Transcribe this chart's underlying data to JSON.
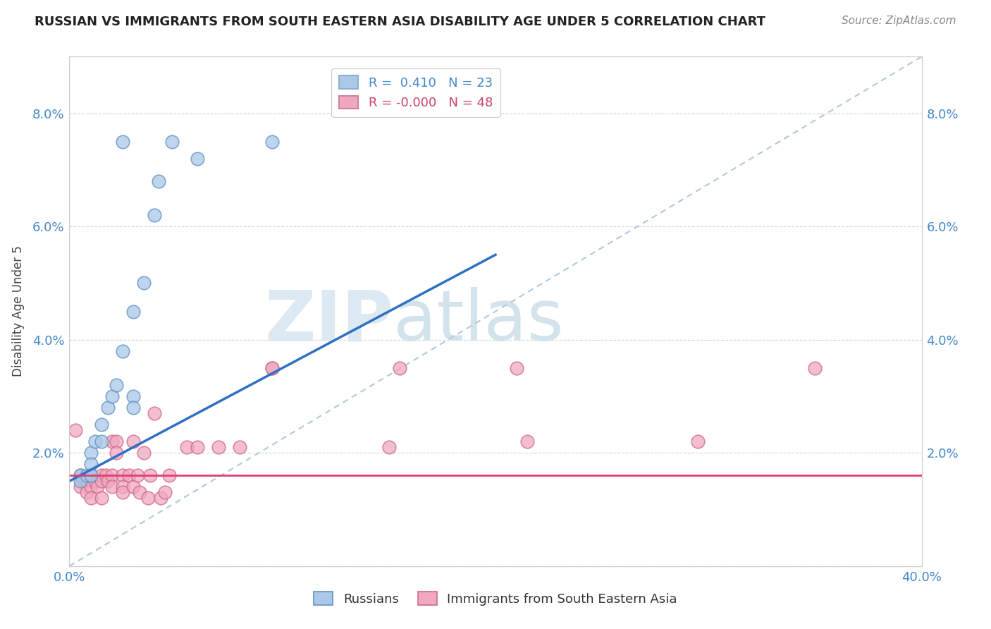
{
  "title": "RUSSIAN VS IMMIGRANTS FROM SOUTH EASTERN ASIA DISABILITY AGE UNDER 5 CORRELATION CHART",
  "source": "Source: ZipAtlas.com",
  "ylabel": "Disability Age Under 5",
  "xlim": [
    0.0,
    0.4
  ],
  "ylim": [
    0.0,
    0.09
  ],
  "xticks": [
    0.0,
    0.1,
    0.2,
    0.3,
    0.4
  ],
  "xtick_labels": [
    "0.0%",
    "",
    "",
    "",
    "40.0%"
  ],
  "yticks": [
    0.0,
    0.02,
    0.04,
    0.06,
    0.08
  ],
  "ytick_labels": [
    "",
    "2.0%",
    "4.0%",
    "6.0%",
    "8.0%"
  ],
  "grid_color": "#d0d0d0",
  "background_color": "#ffffff",
  "watermark_zip": "ZIP",
  "watermark_atlas": "atlas",
  "russian_line_color": "#3070c0",
  "immigrant_line_color": "#e04070",
  "dashed_line_color": "#b0c8e0",
  "scatter_blue": "#aac8e8",
  "scatter_pink": "#f0a8c0",
  "scatter_blue_edge": "#6090c0",
  "scatter_pink_edge": "#d06888",
  "russian_scatter_x": [
    0.005,
    0.005,
    0.008,
    0.01,
    0.01,
    0.01,
    0.012,
    0.015,
    0.015,
    0.018,
    0.02,
    0.022,
    0.025,
    0.03,
    0.03,
    0.03,
    0.035,
    0.04,
    0.042,
    0.048,
    0.06,
    0.095,
    0.025
  ],
  "russian_scatter_y": [
    0.016,
    0.015,
    0.016,
    0.02,
    0.018,
    0.016,
    0.022,
    0.025,
    0.022,
    0.028,
    0.03,
    0.032,
    0.038,
    0.045,
    0.03,
    0.028,
    0.05,
    0.062,
    0.068,
    0.075,
    0.072,
    0.075,
    0.075
  ],
  "immigrant_scatter_x": [
    0.003,
    0.005,
    0.005,
    0.007,
    0.008,
    0.008,
    0.01,
    0.01,
    0.01,
    0.012,
    0.013,
    0.015,
    0.015,
    0.015,
    0.017,
    0.018,
    0.02,
    0.02,
    0.02,
    0.022,
    0.022,
    0.025,
    0.025,
    0.025,
    0.028,
    0.03,
    0.03,
    0.032,
    0.033,
    0.035,
    0.037,
    0.038,
    0.04,
    0.043,
    0.045,
    0.047,
    0.055,
    0.06,
    0.07,
    0.08,
    0.095,
    0.095,
    0.15,
    0.155,
    0.21,
    0.215,
    0.295,
    0.35
  ],
  "immigrant_scatter_y": [
    0.024,
    0.016,
    0.014,
    0.015,
    0.015,
    0.013,
    0.016,
    0.014,
    0.012,
    0.015,
    0.014,
    0.016,
    0.015,
    0.012,
    0.016,
    0.015,
    0.022,
    0.016,
    0.014,
    0.022,
    0.02,
    0.016,
    0.014,
    0.013,
    0.016,
    0.022,
    0.014,
    0.016,
    0.013,
    0.02,
    0.012,
    0.016,
    0.027,
    0.012,
    0.013,
    0.016,
    0.021,
    0.021,
    0.021,
    0.021,
    0.035,
    0.035,
    0.021,
    0.035,
    0.035,
    0.022,
    0.022,
    0.035
  ],
  "russian_line_x": [
    0.0,
    0.2
  ],
  "russian_line_y": [
    0.015,
    0.055
  ],
  "immigrant_line_y": 0.016,
  "diag_line_x": [
    0.0,
    0.4
  ],
  "diag_line_y": [
    0.0,
    0.09
  ],
  "legend_r_value": "0.410",
  "legend_r_n": "23",
  "legend_i_value": "-0.000",
  "legend_i_n": "48"
}
